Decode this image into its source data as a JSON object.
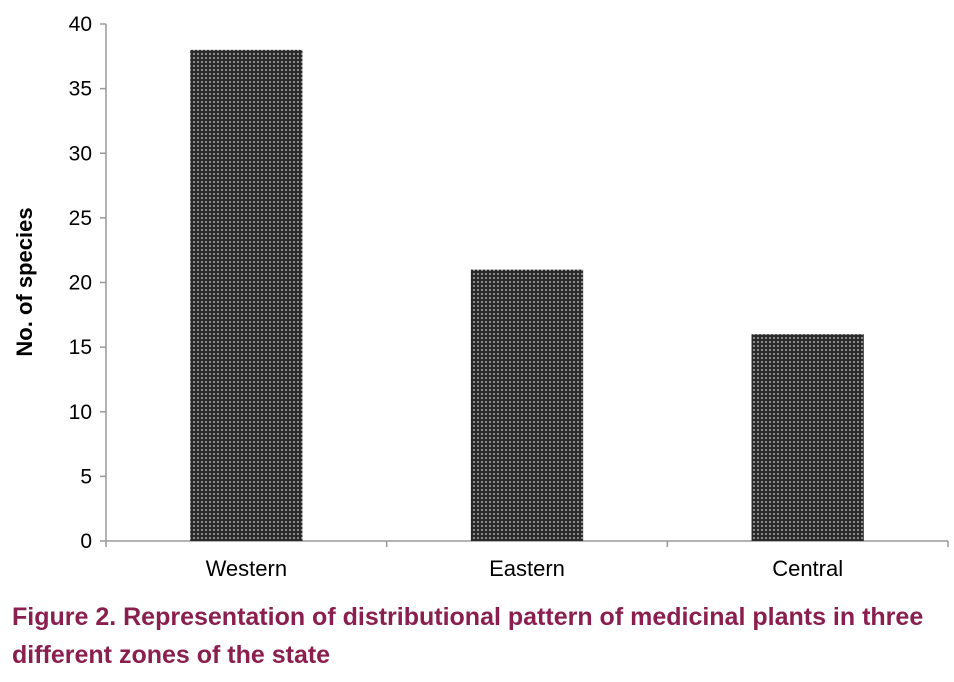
{
  "caption": "Figure 2. Representation of distributional pattern of medicinal plants in three different zones of the state",
  "colors": {
    "bar_fill": "#2a2a2a",
    "bar_dot": "#cfcfcf",
    "axis": "#999999",
    "caption": "#8a1f4f"
  },
  "chart_data": {
    "type": "bar",
    "categories": [
      "Western",
      "Eastern",
      "Central"
    ],
    "values": [
      38,
      21,
      16
    ],
    "ylabel": "No. of species",
    "xlabel": "",
    "ylim": [
      0,
      40
    ],
    "yticks": [
      0,
      5,
      10,
      15,
      20,
      25,
      30,
      35,
      40
    ],
    "grid": false,
    "legend": "none"
  }
}
